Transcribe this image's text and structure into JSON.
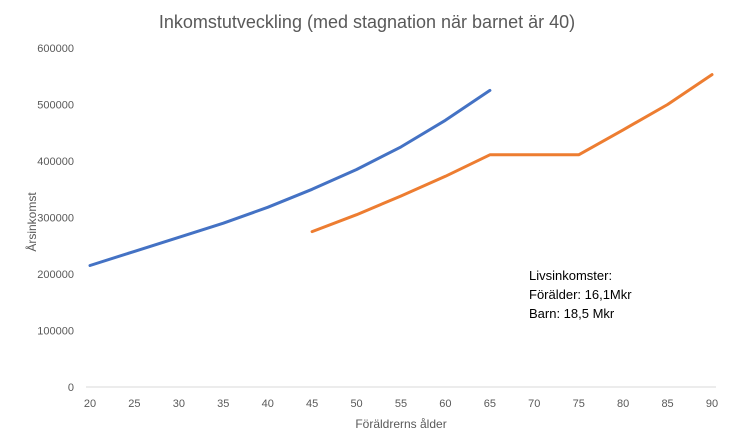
{
  "chart_data": {
    "type": "line",
    "title": "Inkomstutveckling (med stagnation när barnet är 40)",
    "xlabel": "Föräldrerns ålder",
    "ylabel": "Årsinkomst",
    "xlim": [
      20,
      90
    ],
    "ylim": [
      0,
      600000
    ],
    "x_ticks": [
      20,
      25,
      30,
      35,
      40,
      45,
      50,
      55,
      60,
      65,
      70,
      75,
      80,
      85,
      90
    ],
    "y_ticks": [
      0,
      100000,
      200000,
      300000,
      400000,
      500000,
      600000
    ],
    "grid": false,
    "legend": "none",
    "series": [
      {
        "color": "#4472C4",
        "x": [
          20,
          25,
          30,
          35,
          40,
          45,
          50,
          55,
          60,
          65
        ],
        "values": [
          215000,
          240000,
          265000,
          290000,
          318000,
          350000,
          385000,
          425000,
          472000,
          525000
        ]
      },
      {
        "color": "#ED7D31",
        "x": [
          45,
          50,
          55,
          60,
          65,
          70,
          75,
          80,
          85,
          90
        ],
        "values": [
          275000,
          305000,
          338000,
          373000,
          411000,
          411000,
          411000,
          455000,
          500000,
          553000
        ]
      }
    ],
    "annotations": [
      "Livsinkomster:",
      "Förälder: 16,1Mkr",
      "Barn: 18,5 Mkr"
    ]
  }
}
